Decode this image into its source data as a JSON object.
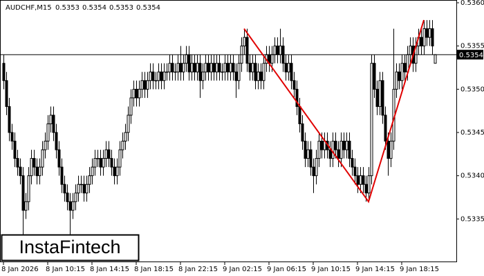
{
  "chart_data": {
    "type": "candlestick",
    "title": "AUDCHF,M15",
    "title_values": [
      0.5353,
      0.5354,
      0.5353,
      0.5354
    ],
    "ylim": [
      0.533,
      0.536
    ],
    "yticks": [
      0.5335,
      {
        "value": 0.534,
        "label": "0.5340"
      },
      0.5345,
      {
        "value": 0.535,
        "label": "0.5350"
      },
      0.5355,
      {
        "value": 0.536,
        "label": "0.5360"
      }
    ],
    "xlim": [
      0,
      164
    ],
    "xticks": [
      {
        "value": 0,
        "label": "8 Jan 2026"
      },
      {
        "value": 16,
        "label": "8 Jan 10:15"
      },
      {
        "value": 32,
        "label": "8 Jan 14:15"
      },
      {
        "value": 48,
        "label": "8 Jan 18:15"
      },
      {
        "value": 64,
        "label": "8 Jan 22:15"
      },
      {
        "value": 80,
        "label": "9 Jan 02:15"
      },
      {
        "value": 96,
        "label": "9 Jan 06:15"
      },
      {
        "value": 112,
        "label": "9 Jan 10:15"
      },
      {
        "value": 128,
        "label": "9 Jan 14:15"
      },
      {
        "value": 144,
        "label": "9 Jan 18:15"
      }
    ],
    "price_line": {
      "value": 0.5354,
      "label": "0.5354"
    },
    "pattern": {
      "color": "#e00000",
      "x": [
        87,
        132,
        152
      ],
      "y": [
        0.5357,
        0.5337,
        0.5358
      ]
    },
    "candles": [
      [
        0.5353,
        0.5354,
        0.535,
        0.5351
      ],
      [
        0.5351,
        0.5352,
        0.5347,
        0.5348
      ],
      [
        0.5348,
        0.5349,
        0.5344,
        0.5345
      ],
      [
        0.5345,
        0.5346,
        0.5343,
        0.5344
      ],
      [
        0.5344,
        0.5345,
        0.5341,
        0.5342
      ],
      [
        0.5342,
        0.5343,
        0.534,
        0.5341
      ],
      [
        0.5341,
        0.5342,
        0.5339,
        0.534
      ],
      [
        0.534,
        0.5341,
        0.5333,
        0.5336
      ],
      [
        0.5336,
        0.5338,
        0.5335,
        0.5337
      ],
      [
        0.5337,
        0.5341,
        0.5336,
        0.534
      ],
      [
        0.534,
        0.5343,
        0.5339,
        0.5342
      ],
      [
        0.5342,
        0.5343,
        0.534,
        0.5341
      ],
      [
        0.5341,
        0.5342,
        0.5339,
        0.534
      ],
      [
        0.534,
        0.5342,
        0.5339,
        0.5341
      ],
      [
        0.5341,
        0.5344,
        0.534,
        0.5343
      ],
      [
        0.5343,
        0.5345,
        0.5342,
        0.5344
      ],
      [
        0.5344,
        0.5347,
        0.5343,
        0.5346
      ],
      [
        0.5346,
        0.5348,
        0.5345,
        0.5347
      ],
      [
        0.5347,
        0.5348,
        0.5344,
        0.5345
      ],
      [
        0.5345,
        0.5346,
        0.5342,
        0.5343
      ],
      [
        0.5343,
        0.5344,
        0.534,
        0.5341
      ],
      [
        0.5341,
        0.5342,
        0.5338,
        0.5339
      ],
      [
        0.5339,
        0.534,
        0.5337,
        0.5338
      ],
      [
        0.5338,
        0.5339,
        0.5336,
        0.5337
      ],
      [
        0.5337,
        0.5338,
        0.5333,
        0.5336
      ],
      [
        0.5336,
        0.5338,
        0.5335,
        0.5337
      ],
      [
        0.5337,
        0.5339,
        0.5336,
        0.5338
      ],
      [
        0.5338,
        0.534,
        0.5337,
        0.5339
      ],
      [
        0.5339,
        0.534,
        0.5338,
        0.5339
      ],
      [
        0.5339,
        0.534,
        0.5337,
        0.5338
      ],
      [
        0.5338,
        0.534,
        0.5337,
        0.5339
      ],
      [
        0.5339,
        0.5341,
        0.5338,
        0.534
      ],
      [
        0.534,
        0.5342,
        0.5339,
        0.5341
      ],
      [
        0.5341,
        0.5343,
        0.534,
        0.5342
      ],
      [
        0.5342,
        0.5343,
        0.5341,
        0.5342
      ],
      [
        0.5342,
        0.5343,
        0.534,
        0.5341
      ],
      [
        0.5341,
        0.5343,
        0.534,
        0.5342
      ],
      [
        0.5342,
        0.5344,
        0.5341,
        0.5343
      ],
      [
        0.5343,
        0.5344,
        0.5341,
        0.5342
      ],
      [
        0.5342,
        0.5343,
        0.534,
        0.5341
      ],
      [
        0.5341,
        0.5342,
        0.5339,
        0.534
      ],
      [
        0.534,
        0.5342,
        0.5339,
        0.5341
      ],
      [
        0.5341,
        0.5344,
        0.534,
        0.5343
      ],
      [
        0.5343,
        0.5345,
        0.5342,
        0.5344
      ],
      [
        0.5344,
        0.5346,
        0.5343,
        0.5345
      ],
      [
        0.5345,
        0.5348,
        0.5344,
        0.5347
      ],
      [
        0.5347,
        0.535,
        0.5346,
        0.5349
      ],
      [
        0.5349,
        0.5351,
        0.5348,
        0.535
      ],
      [
        0.535,
        0.5351,
        0.5348,
        0.5349
      ],
      [
        0.5349,
        0.5351,
        0.5348,
        0.535
      ],
      [
        0.535,
        0.5352,
        0.5349,
        0.5351
      ],
      [
        0.5351,
        0.5352,
        0.5349,
        0.535
      ],
      [
        0.535,
        0.5352,
        0.5349,
        0.5351
      ],
      [
        0.5351,
        0.5353,
        0.535,
        0.5352
      ],
      [
        0.5352,
        0.5353,
        0.535,
        0.5351
      ],
      [
        0.5351,
        0.5352,
        0.535,
        0.5351
      ],
      [
        0.5351,
        0.5353,
        0.535,
        0.5352
      ],
      [
        0.5352,
        0.5353,
        0.535,
        0.5351
      ],
      [
        0.5351,
        0.5353,
        0.535,
        0.5352
      ],
      [
        0.5352,
        0.5353,
        0.5351,
        0.5352
      ],
      [
        0.5352,
        0.5354,
        0.5351,
        0.5353
      ],
      [
        0.5353,
        0.5354,
        0.5351,
        0.5352
      ],
      [
        0.5352,
        0.5353,
        0.5351,
        0.5352
      ],
      [
        0.5352,
        0.5354,
        0.5351,
        0.5353
      ],
      [
        0.5353,
        0.5355,
        0.5351,
        0.5352
      ],
      [
        0.5352,
        0.5354,
        0.5351,
        0.5353
      ],
      [
        0.5353,
        0.5355,
        0.5352,
        0.5354
      ],
      [
        0.5354,
        0.5355,
        0.5351,
        0.5352
      ],
      [
        0.5352,
        0.5354,
        0.5351,
        0.5353
      ],
      [
        0.5353,
        0.5354,
        0.5351,
        0.5352
      ],
      [
        0.5352,
        0.5354,
        0.5351,
        0.5353
      ],
      [
        0.5353,
        0.5354,
        0.5349,
        0.5351
      ],
      [
        0.5351,
        0.5353,
        0.535,
        0.5352
      ],
      [
        0.5352,
        0.5354,
        0.5351,
        0.5353
      ],
      [
        0.5353,
        0.5354,
        0.5351,
        0.5352
      ],
      [
        0.5352,
        0.5354,
        0.5351,
        0.5353
      ],
      [
        0.5353,
        0.5354,
        0.5351,
        0.5352
      ],
      [
        0.5352,
        0.5354,
        0.5351,
        0.5353
      ],
      [
        0.5353,
        0.5354,
        0.5351,
        0.5352
      ],
      [
        0.5352,
        0.5353,
        0.5351,
        0.5352
      ],
      [
        0.5352,
        0.5354,
        0.5351,
        0.5353
      ],
      [
        0.5353,
        0.5354,
        0.5351,
        0.5352
      ],
      [
        0.5352,
        0.5354,
        0.5351,
        0.5353
      ],
      [
        0.5353,
        0.5354,
        0.5351,
        0.5352
      ],
      [
        0.5352,
        0.5353,
        0.5349,
        0.5351
      ],
      [
        0.5351,
        0.5354,
        0.535,
        0.5353
      ],
      [
        0.5353,
        0.5356,
        0.5352,
        0.5355
      ],
      [
        0.5355,
        0.5357,
        0.5354,
        0.5356
      ],
      [
        0.5356,
        0.5357,
        0.5352,
        0.5353
      ],
      [
        0.5353,
        0.5354,
        0.5351,
        0.5352
      ],
      [
        0.5352,
        0.5354,
        0.5351,
        0.5353
      ],
      [
        0.5353,
        0.5354,
        0.535,
        0.5351
      ],
      [
        0.5351,
        0.5353,
        0.535,
        0.5352
      ],
      [
        0.5352,
        0.5353,
        0.535,
        0.5351
      ],
      [
        0.5351,
        0.5354,
        0.535,
        0.5353
      ],
      [
        0.5353,
        0.5355,
        0.5352,
        0.5354
      ],
      [
        0.5354,
        0.5355,
        0.5352,
        0.5353
      ],
      [
        0.5353,
        0.5355,
        0.5352,
        0.5354
      ],
      [
        0.5354,
        0.5356,
        0.5353,
        0.5355
      ],
      [
        0.5355,
        0.5356,
        0.5353,
        0.5354
      ],
      [
        0.5354,
        0.5357,
        0.5353,
        0.5355
      ],
      [
        0.5355,
        0.5356,
        0.5352,
        0.5353
      ],
      [
        0.5353,
        0.5354,
        0.5351,
        0.5352
      ],
      [
        0.5352,
        0.5354,
        0.5351,
        0.5353
      ],
      [
        0.5353,
        0.5354,
        0.535,
        0.5351
      ],
      [
        0.5351,
        0.5352,
        0.5349,
        0.535
      ],
      [
        0.535,
        0.5351,
        0.5347,
        0.5348
      ],
      [
        0.5348,
        0.5349,
        0.5345,
        0.5346
      ],
      [
        0.5346,
        0.5347,
        0.5343,
        0.5344
      ],
      [
        0.5344,
        0.5345,
        0.5341,
        0.5342
      ],
      [
        0.5342,
        0.5344,
        0.5341,
        0.5343
      ],
      [
        0.5343,
        0.5344,
        0.534,
        0.5341
      ],
      [
        0.5341,
        0.5342,
        0.5338,
        0.534
      ],
      [
        0.534,
        0.5343,
        0.5339,
        0.5342
      ],
      [
        0.5342,
        0.5345,
        0.5341,
        0.5344
      ],
      [
        0.5344,
        0.5345,
        0.5342,
        0.5343
      ],
      [
        0.5343,
        0.5345,
        0.5342,
        0.5344
      ],
      [
        0.5344,
        0.5345,
        0.5342,
        0.5343
      ],
      [
        0.5343,
        0.5344,
        0.5341,
        0.5342
      ],
      [
        0.5342,
        0.5345,
        0.5341,
        0.5344
      ],
      [
        0.5344,
        0.5345,
        0.5342,
        0.5343
      ],
      [
        0.5343,
        0.5344,
        0.5341,
        0.5342
      ],
      [
        0.5342,
        0.5345,
        0.5341,
        0.5344
      ],
      [
        0.5344,
        0.5345,
        0.5342,
        0.5343
      ],
      [
        0.5343,
        0.5345,
        0.5342,
        0.5344
      ],
      [
        0.5344,
        0.5345,
        0.5341,
        0.5342
      ],
      [
        0.5342,
        0.5343,
        0.534,
        0.5341
      ],
      [
        0.5341,
        0.5342,
        0.5339,
        0.534
      ],
      [
        0.534,
        0.5341,
        0.5338,
        0.5339
      ],
      [
        0.5339,
        0.5341,
        0.5338,
        0.534
      ],
      [
        0.534,
        0.5341,
        0.5338,
        0.5339
      ],
      [
        0.5339,
        0.534,
        0.5337,
        0.5338
      ],
      [
        0.5338,
        0.5341,
        0.5337,
        0.534
      ],
      [
        0.534,
        0.5354,
        0.5339,
        0.5353
      ],
      [
        0.5353,
        0.5354,
        0.5349,
        0.535
      ],
      [
        0.535,
        0.5351,
        0.5347,
        0.5348
      ],
      [
        0.5348,
        0.5352,
        0.5347,
        0.5351
      ],
      [
        0.5351,
        0.5352,
        0.5346,
        0.5347
      ],
      [
        0.5347,
        0.5348,
        0.5343,
        0.5344
      ],
      [
        0.5344,
        0.5345,
        0.534,
        0.5342
      ],
      [
        0.5342,
        0.5345,
        0.5341,
        0.5344
      ],
      [
        0.5344,
        0.5357,
        0.5343,
        0.535
      ],
      [
        0.535,
        0.5353,
        0.5349,
        0.5352
      ],
      [
        0.5352,
        0.5353,
        0.535,
        0.5351
      ],
      [
        0.5351,
        0.5354,
        0.535,
        0.5353
      ],
      [
        0.5353,
        0.5354,
        0.5351,
        0.5352
      ],
      [
        0.5352,
        0.5355,
        0.5351,
        0.5354
      ],
      [
        0.5354,
        0.5356,
        0.5353,
        0.5355
      ],
      [
        0.5355,
        0.5356,
        0.5352,
        0.5353
      ],
      [
        0.5353,
        0.5356,
        0.5352,
        0.5355
      ],
      [
        0.5355,
        0.5357,
        0.5354,
        0.5356
      ],
      [
        0.5356,
        0.5357,
        0.5354,
        0.5355
      ],
      [
        0.5355,
        0.5358,
        0.5354,
        0.5357
      ],
      [
        0.5357,
        0.5358,
        0.5355,
        0.5356
      ],
      [
        0.5356,
        0.5358,
        0.5355,
        0.5357
      ],
      [
        0.5357,
        0.5358,
        0.5354,
        0.5355
      ],
      [
        0.5353,
        0.5354,
        0.5353,
        0.5354
      ]
    ],
    "logo": "InstaFintech"
  }
}
